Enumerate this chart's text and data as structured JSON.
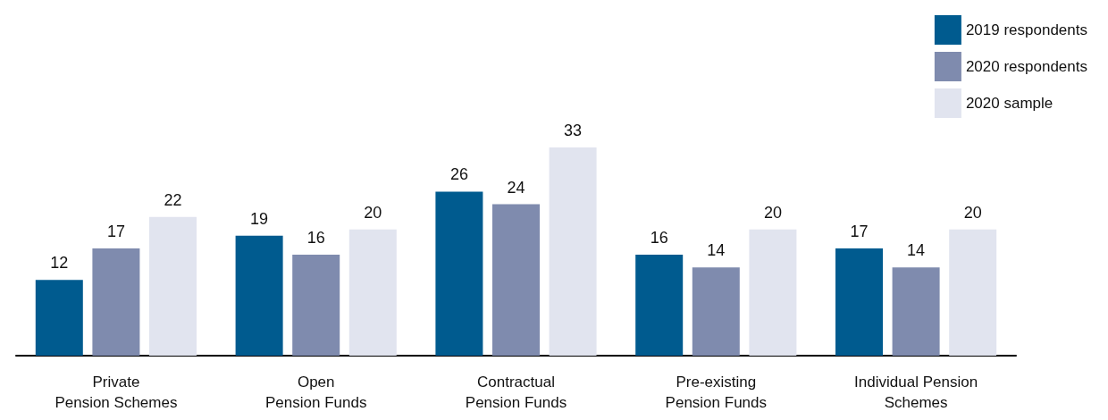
{
  "chart_data": {
    "type": "bar",
    "categories": [
      "Private\nPension Schemes",
      "Open\nPension Funds",
      "Contractual\nPension Funds",
      "Pre-existing\nPension Funds",
      "Individual Pension\nSchemes"
    ],
    "series": [
      {
        "name": "2019 respondents",
        "color": "#005b8f",
        "values": [
          12,
          19,
          26,
          16,
          17
        ]
      },
      {
        "name": "2020 respondents",
        "color": "#7f8bae",
        "values": [
          17,
          16,
          24,
          14,
          14
        ]
      },
      {
        "name": "2020 sample",
        "color": "#e1e4ef",
        "values": [
          22,
          20,
          33,
          20,
          20
        ]
      }
    ],
    "data_labels": true,
    "legend": "top right",
    "grid": false
  }
}
